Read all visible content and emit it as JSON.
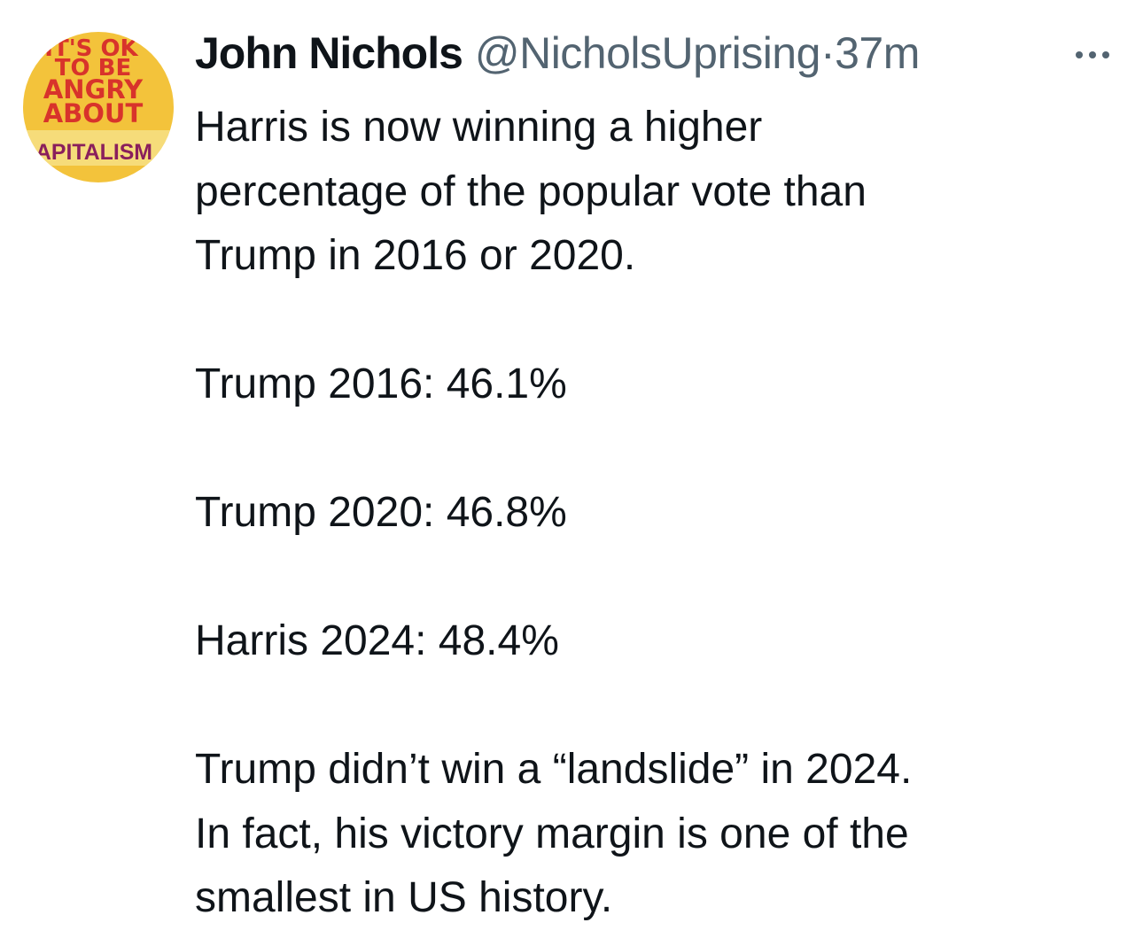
{
  "avatar": {
    "lines": [
      "IT'S OK",
      "TO BE",
      "ANGRY",
      "ABOUT",
      "CAPITALISM"
    ]
  },
  "author": {
    "name": "John Nichols",
    "handle": "@NicholsUprising",
    "separator": "·",
    "time": "37m"
  },
  "paragraphs": [
    [
      "Harris is now winning a higher",
      "percentage of the popular vote than",
      "Trump in 2016 or 2020."
    ],
    [
      "Trump 2016: 46.1%"
    ],
    [
      "Trump 2020: 46.8%"
    ],
    [
      "Harris 2024: 48.4%"
    ],
    [
      "Trump didn’t win a “landslide” in 2024.",
      "In fact, his victory margin is one of the",
      "smallest in US history."
    ]
  ]
}
